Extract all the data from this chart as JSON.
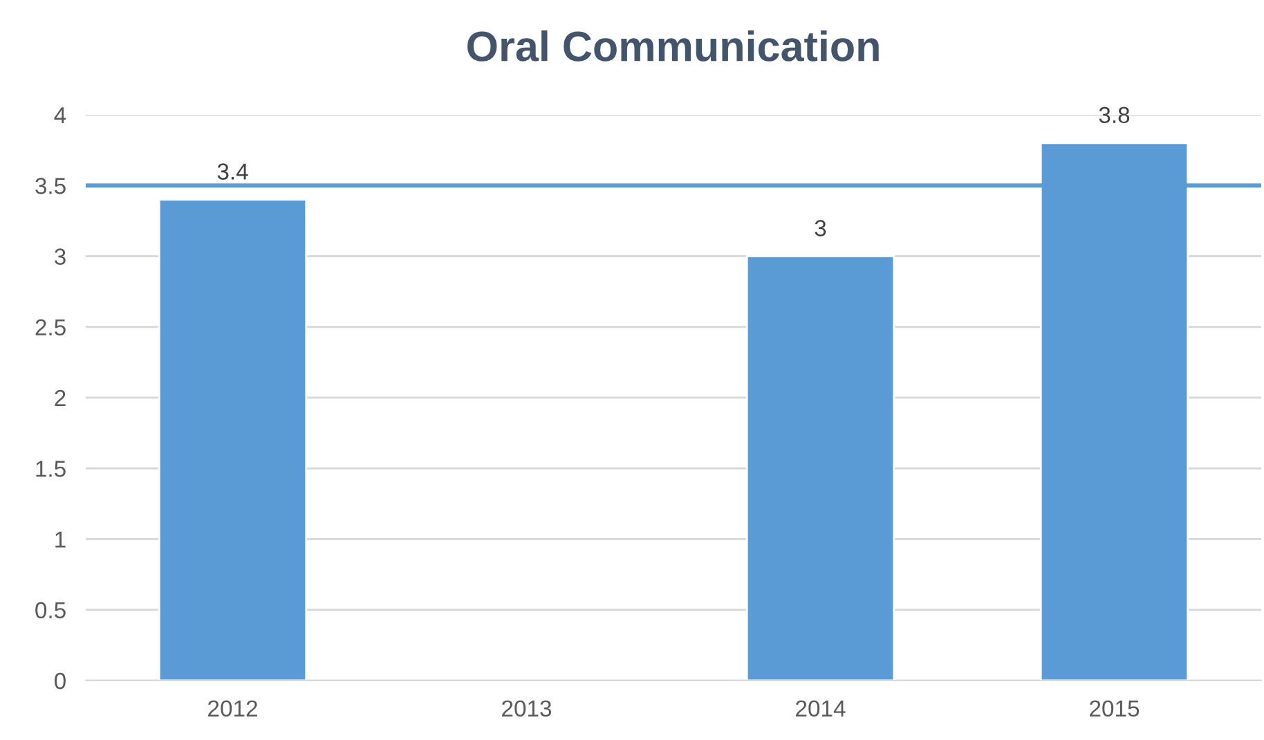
{
  "chart_data": {
    "type": "bar",
    "title": "Oral Communication",
    "categories": [
      "2012",
      "2013",
      "2014",
      "2015"
    ],
    "values": [
      3.4,
      null,
      3,
      3.8
    ],
    "color": "#5b9bd5",
    "ylim": [
      0,
      4
    ],
    "yticks": [
      0,
      0.5,
      1,
      1.5,
      2,
      2.5,
      3,
      3.5,
      4
    ],
    "grid": "y",
    "data_labels": true,
    "ref_lines": [
      {
        "axis": "y",
        "value": 3.5,
        "color": "#5b9bd5"
      }
    ]
  }
}
